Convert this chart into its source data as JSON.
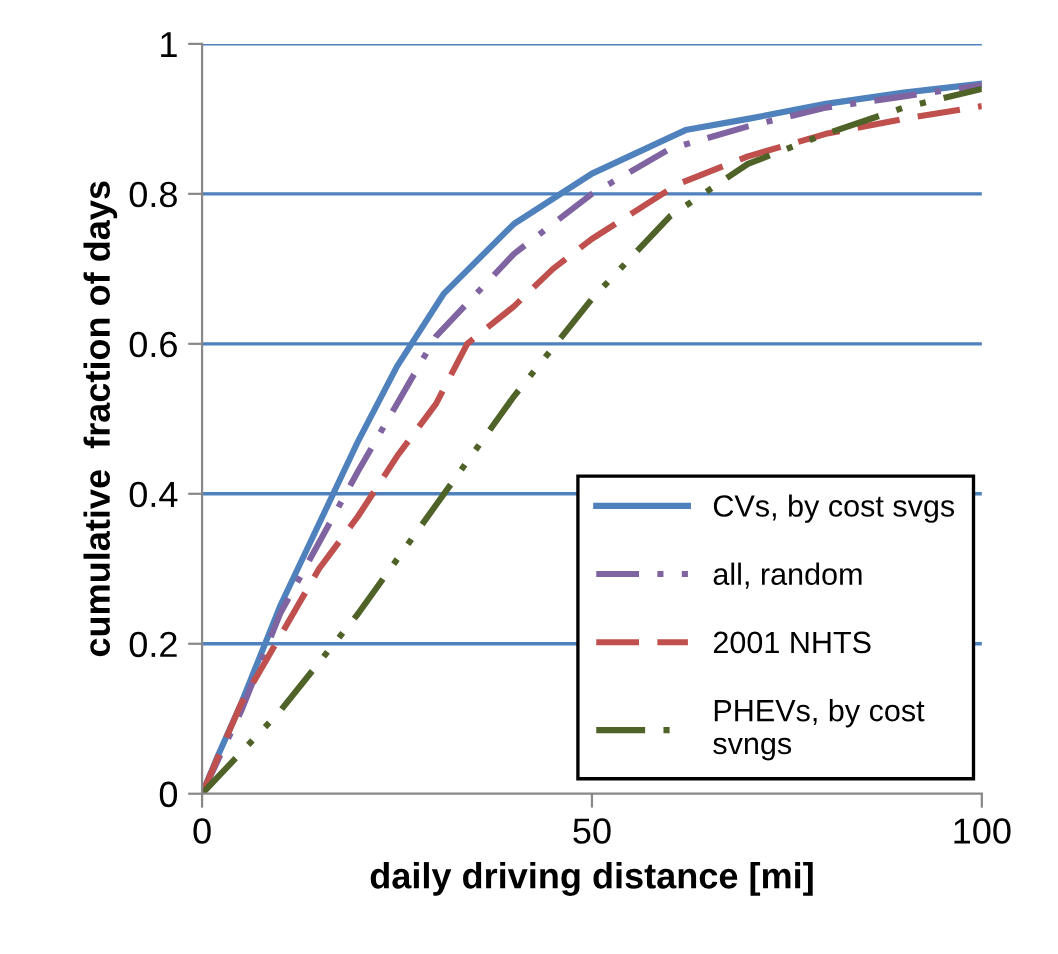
{
  "chart_data": {
    "type": "line",
    "xlabel": "daily driving distance [mi]",
    "ylabel": "cumulative  fraction of days",
    "xlim": [
      0,
      100
    ],
    "xticks": [
      0,
      50,
      100
    ],
    "ylim": [
      0,
      1
    ],
    "yticks": [
      0,
      {
        "value": 0.2,
        "label": "0.2"
      },
      {
        "value": 0.4,
        "label": "0.4"
      },
      {
        "value": 0.6,
        "label": "0.6"
      },
      {
        "value": 0.8,
        "label": "0.8"
      },
      1
    ],
    "grid": "y",
    "legend": "bottom right",
    "marker": "none",
    "series": [
      {
        "name": "CVs, by cost svgs",
        "color": "#4f81bd",
        "line_style": "solid",
        "x": [
          0,
          2,
          5,
          10,
          15,
          20,
          25,
          31,
          40,
          50,
          62,
          70,
          80,
          90,
          100
        ],
        "values": [
          0,
          0.05,
          0.12,
          0.25,
          0.36,
          0.47,
          0.57,
          0.667,
          0.76,
          0.827,
          0.885,
          0.9,
          0.92,
          0.935,
          0.947
        ]
      },
      {
        "name": "all, random",
        "color": "#8064a2",
        "line_style": "dashdot",
        "x": [
          0,
          5,
          10,
          20,
          30,
          40,
          50,
          60,
          70,
          80,
          90,
          100
        ],
        "values": [
          0,
          0.11,
          0.24,
          0.43,
          0.61,
          0.72,
          0.8,
          0.86,
          0.89,
          0.915,
          0.93,
          0.945
        ]
      },
      {
        "name": "2001 NHTS",
        "color": "#c0504d",
        "line_style": "dashed",
        "x": [
          0,
          5,
          10,
          15,
          20,
          25,
          30,
          34,
          40,
          45,
          50,
          61,
          70,
          80,
          90,
          100
        ],
        "values": [
          0,
          0.12,
          0.21,
          0.3,
          0.37,
          0.45,
          0.52,
          0.6,
          0.65,
          0.7,
          0.74,
          0.813,
          0.85,
          0.88,
          0.9,
          0.917
        ]
      },
      {
        "name": "PHEVs, by cost\nsvngs",
        "color": "#4f6228",
        "line_style": "dashdotdot",
        "x": [
          0,
          10,
          20,
          30,
          40,
          50,
          60,
          70,
          80,
          90,
          100
        ],
        "values": [
          0,
          0.11,
          0.24,
          0.385,
          0.53,
          0.66,
          0.77,
          0.84,
          0.88,
          0.915,
          0.94
        ]
      }
    ]
  }
}
